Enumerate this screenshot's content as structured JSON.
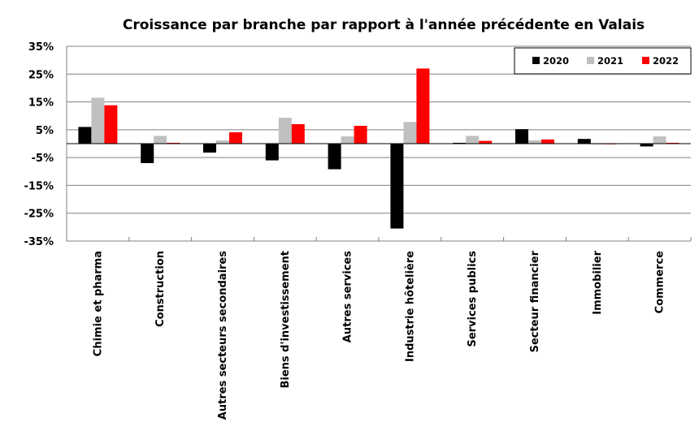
{
  "chart_data": {
    "type": "bar",
    "title": "Croissance par branche par rapport à l'année précédente en Valais",
    "xlabel": "",
    "ylabel": "",
    "ylim": [
      -35,
      35
    ],
    "yticks": [
      35,
      25,
      15,
      5,
      -5,
      -15,
      -25,
      -35
    ],
    "ytick_labels": [
      "35%",
      "25%",
      "15%",
      "5%",
      "-5%",
      "-15%",
      "-25%",
      "-35%"
    ],
    "grid": true,
    "legend_position": "top-right",
    "categories": [
      "Chimie et pharma",
      "Construction",
      "Autres secteurs secondaires",
      "Biens d'investissement",
      "Autres services",
      "Industrie hôtelière",
      "Services publics",
      "Secteur financier",
      "Immobilier",
      "Commerce"
    ],
    "series": [
      {
        "name": "2020",
        "color": "#000000",
        "values": [
          6.0,
          -7.0,
          -3.2,
          -6.0,
          -9.2,
          -30.5,
          0.3,
          5.2,
          1.7,
          -1.0
        ]
      },
      {
        "name": "2021",
        "color": "#c0c0c0",
        "values": [
          16.5,
          2.8,
          1.2,
          9.3,
          2.6,
          7.8,
          2.8,
          1.2,
          -0.3,
          2.6
        ]
      },
      {
        "name": "2022",
        "color": "#ff0000",
        "values": [
          13.8,
          0.3,
          4.1,
          7.0,
          6.4,
          27.0,
          1.0,
          1.5,
          0.0,
          0.3
        ]
      }
    ]
  }
}
